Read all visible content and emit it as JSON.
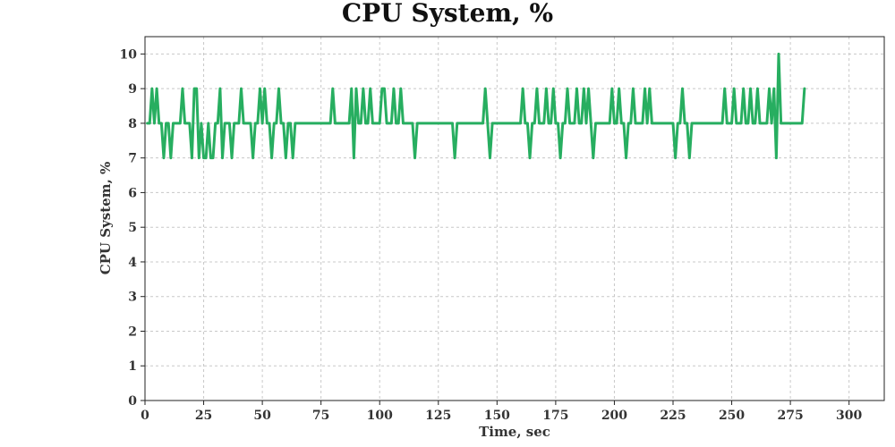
{
  "chart_data": {
    "type": "line",
    "title": "CPU System, %",
    "xlabel": "Time, sec",
    "ylabel": "CPU System, %",
    "xlim": [
      0,
      315
    ],
    "ylim": [
      0,
      10.5
    ],
    "x_ticks": [
      0,
      25,
      50,
      75,
      100,
      125,
      150,
      175,
      200,
      225,
      250,
      275,
      300
    ],
    "y_ticks": [
      0,
      1,
      2,
      3,
      4,
      5,
      6,
      7,
      8,
      9,
      10
    ],
    "grid": true,
    "legend": "none",
    "series": [
      {
        "color": "#27ae60",
        "x_start": 1,
        "x_step": 1,
        "values": [
          8,
          8,
          9,
          8,
          9,
          8,
          8,
          7,
          8,
          8,
          7,
          8,
          8,
          8,
          8,
          9,
          8,
          8,
          8,
          7,
          9,
          9,
          7,
          8,
          7,
          7,
          8,
          7,
          7,
          8,
          8,
          9,
          7,
          8,
          8,
          8,
          7,
          8,
          8,
          8,
          9,
          8,
          8,
          8,
          8,
          7,
          8,
          8,
          9,
          8,
          9,
          8,
          8,
          7,
          8,
          8,
          9,
          8,
          8,
          7,
          8,
          8,
          7,
          8,
          8,
          8,
          8,
          8,
          8,
          8,
          8,
          8,
          8,
          8,
          8,
          8,
          8,
          8,
          8,
          9,
          8,
          8,
          8,
          8,
          8,
          8,
          8,
          9,
          7,
          9,
          8,
          8,
          9,
          8,
          8,
          9,
          8,
          8,
          8,
          8,
          9,
          9,
          8,
          8,
          8,
          9,
          8,
          8,
          9,
          8,
          8,
          8,
          8,
          8,
          7,
          8,
          8,
          8,
          8,
          8,
          8,
          8,
          8,
          8,
          8,
          8,
          8,
          8,
          8,
          8,
          8,
          7,
          8,
          8,
          8,
          8,
          8,
          8,
          8,
          8,
          8,
          8,
          8,
          8,
          9,
          8,
          7,
          8,
          8,
          8,
          8,
          8,
          8,
          8,
          8,
          8,
          8,
          8,
          8,
          8,
          9,
          8,
          8,
          7,
          8,
          8,
          9,
          8,
          8,
          8,
          9,
          8,
          8,
          9,
          8,
          8,
          7,
          8,
          8,
          9,
          8,
          8,
          8,
          9,
          8,
          8,
          9,
          8,
          9,
          8,
          7,
          8,
          8,
          8,
          8,
          8,
          8,
          8,
          9,
          8,
          8,
          9,
          8,
          8,
          7,
          8,
          8,
          9,
          8,
          8,
          8,
          8,
          9,
          8,
          9,
          8,
          8,
          8,
          8,
          8,
          8,
          8,
          8,
          8,
          8,
          7,
          8,
          8,
          9,
          8,
          8,
          7,
          8,
          8,
          8,
          8,
          8,
          8,
          8,
          8,
          8,
          8,
          8,
          8,
          8,
          8,
          9,
          8,
          8,
          8,
          9,
          8,
          8,
          8,
          9,
          8,
          8,
          9,
          8,
          8,
          9,
          8,
          8,
          8,
          8,
          9,
          8,
          9,
          7,
          10,
          8,
          8,
          8,
          8,
          8,
          8,
          8,
          8,
          8,
          8,
          9
        ]
      }
    ]
  }
}
